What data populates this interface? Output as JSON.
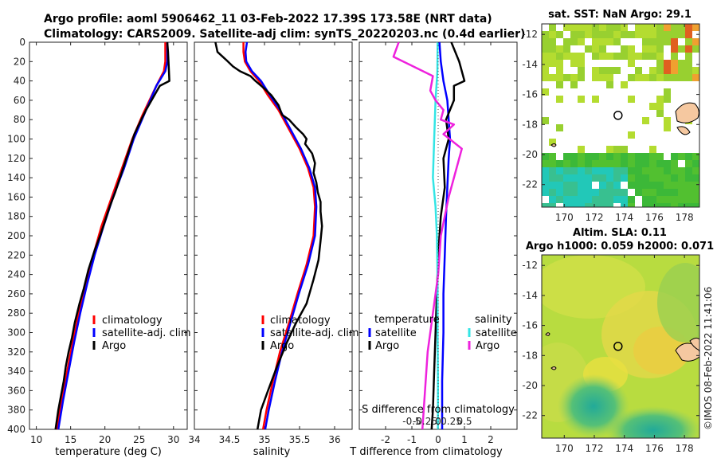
{
  "title": {
    "line1": "Argo profile: aoml 5906462_11 03-Feb-2022 17.39S 173.58E (NRT data)",
    "line2": "Climatology: CARS2009. Satellite-adj clim: synTS_20220203.nc (0.4d earlier)"
  },
  "colors": {
    "clim": "#ff0000",
    "sat": "#0000ff",
    "argo": "#000000",
    "sal_sat": "#33e5e5",
    "sal_argo": "#ee22dd"
  },
  "depth_ticks": [
    "0",
    "20",
    "40",
    "60",
    "80",
    "100",
    "120",
    "140",
    "160",
    "180",
    "200",
    "220",
    "240",
    "260",
    "280",
    "300",
    "320",
    "340",
    "360",
    "380",
    "400"
  ],
  "chart_data": [
    {
      "type": "line",
      "name": "temperature",
      "xlabel": "temperature (deg C)",
      "xlim": [
        9,
        32
      ],
      "xticks": [
        "10",
        "15",
        "20",
        "25",
        "30"
      ],
      "ylim": [
        0,
        400
      ],
      "legend": [
        "climatology",
        "satellite-adj. clim",
        "Argo"
      ],
      "series": [
        {
          "name": "climatology",
          "points": [
            [
              28.8,
              0
            ],
            [
              28.8,
              20
            ],
            [
              28.6,
              30
            ],
            [
              27.5,
              45
            ],
            [
              25.5,
              75
            ],
            [
              24,
              100
            ],
            [
              22.5,
              130
            ],
            [
              21,
              160
            ],
            [
              19.5,
              190
            ],
            [
              18.3,
              220
            ],
            [
              17.2,
              250
            ],
            [
              16.2,
              280
            ],
            [
              15.3,
              310
            ],
            [
              14.5,
              340
            ],
            [
              13.7,
              370
            ],
            [
              13,
              400
            ]
          ]
        },
        {
          "name": "satellite-adj. clim",
          "points": [
            [
              29.1,
              0
            ],
            [
              29.1,
              20
            ],
            [
              28.8,
              30
            ],
            [
              27.5,
              45
            ],
            [
              25.7,
              75
            ],
            [
              24.2,
              100
            ],
            [
              22.8,
              130
            ],
            [
              21.2,
              160
            ],
            [
              19.8,
              190
            ],
            [
              18.5,
              220
            ],
            [
              17.4,
              250
            ],
            [
              16.4,
              280
            ],
            [
              15.5,
              310
            ],
            [
              14.7,
              340
            ],
            [
              13.9,
              370
            ],
            [
              13.2,
              400
            ]
          ]
        },
        {
          "name": "Argo",
          "points": [
            [
              29.1,
              0
            ],
            [
              29.2,
              10
            ],
            [
              29.3,
              25
            ],
            [
              29.4,
              40
            ],
            [
              28,
              45
            ],
            [
              26,
              70
            ],
            [
              25.3,
              80
            ],
            [
              24.3,
              95
            ],
            [
              23.6,
              110
            ],
            [
              22.9,
              125
            ],
            [
              22.2,
              140
            ],
            [
              21.5,
              155
            ],
            [
              20.7,
              170
            ],
            [
              20,
              185
            ],
            [
              19.3,
              200
            ],
            [
              18.5,
              215
            ],
            [
              17.6,
              235
            ],
            [
              16.9,
              255
            ],
            [
              16.3,
              270
            ],
            [
              15.6,
              290
            ],
            [
              15.2,
              305
            ],
            [
              14.7,
              320
            ],
            [
              14.3,
              335
            ],
            [
              14,
              350
            ],
            [
              13.6,
              365
            ],
            [
              13.2,
              380
            ],
            [
              12.8,
              400
            ]
          ]
        }
      ]
    },
    {
      "type": "line",
      "name": "salinity",
      "xlabel": "salinity",
      "xlim": [
        34,
        36.25
      ],
      "xticks": [
        "34",
        "34.5",
        "35",
        "35.5",
        "36"
      ],
      "ylim": [
        0,
        400
      ],
      "legend": [
        "climatology",
        "satellite-adj. clim",
        "Argo"
      ],
      "series": [
        {
          "name": "climatology",
          "points": [
            [
              34.7,
              0
            ],
            [
              34.7,
              10
            ],
            [
              34.72,
              20
            ],
            [
              34.8,
              30
            ],
            [
              34.92,
              40
            ],
            [
              35.05,
              55
            ],
            [
              35.2,
              70
            ],
            [
              35.35,
              90
            ],
            [
              35.5,
              110
            ],
            [
              35.62,
              130
            ],
            [
              35.7,
              150
            ],
            [
              35.72,
              170
            ],
            [
              35.7,
              200
            ],
            [
              35.6,
              230
            ],
            [
              35.47,
              260
            ],
            [
              35.35,
              290
            ],
            [
              35.22,
              320
            ],
            [
              35.12,
              350
            ],
            [
              35.03,
              380
            ],
            [
              34.98,
              400
            ]
          ]
        },
        {
          "name": "satellite-adj. clim",
          "points": [
            [
              34.75,
              0
            ],
            [
              34.73,
              10
            ],
            [
              34.74,
              20
            ],
            [
              34.82,
              30
            ],
            [
              34.95,
              40
            ],
            [
              35.08,
              55
            ],
            [
              35.22,
              70
            ],
            [
              35.37,
              90
            ],
            [
              35.52,
              110
            ],
            [
              35.64,
              130
            ],
            [
              35.72,
              150
            ],
            [
              35.74,
              170
            ],
            [
              35.72,
              200
            ],
            [
              35.62,
              230
            ],
            [
              35.49,
              260
            ],
            [
              35.37,
              290
            ],
            [
              35.25,
              320
            ],
            [
              35.15,
              350
            ],
            [
              35.06,
              380
            ],
            [
              35.01,
              400
            ]
          ]
        },
        {
          "name": "Argo",
          "points": [
            [
              34.3,
              0
            ],
            [
              34.33,
              10
            ],
            [
              34.45,
              18
            ],
            [
              34.55,
              25
            ],
            [
              34.65,
              30
            ],
            [
              34.8,
              35
            ],
            [
              34.87,
              40
            ],
            [
              35.0,
              48
            ],
            [
              35.1,
              55
            ],
            [
              35.2,
              65
            ],
            [
              35.25,
              75
            ],
            [
              35.35,
              80
            ],
            [
              35.45,
              88
            ],
            [
              35.55,
              95
            ],
            [
              35.6,
              100
            ],
            [
              35.58,
              105
            ],
            [
              35.68,
              115
            ],
            [
              35.72,
              125
            ],
            [
              35.7,
              135
            ],
            [
              35.74,
              145
            ],
            [
              35.76,
              155
            ],
            [
              35.8,
              165
            ],
            [
              35.8,
              175
            ],
            [
              35.82,
              190
            ],
            [
              35.8,
              205
            ],
            [
              35.77,
              225
            ],
            [
              35.7,
              245
            ],
            [
              35.6,
              270
            ],
            [
              35.45,
              290
            ],
            [
              35.32,
              310
            ],
            [
              35.18,
              335
            ],
            [
              35.05,
              360
            ],
            [
              34.95,
              380
            ],
            [
              34.9,
              400
            ]
          ]
        }
      ]
    },
    {
      "type": "line",
      "name": "difference",
      "xlabel": "T difference from climatology",
      "xlabel_top": "S difference from climatology",
      "xlim": [
        -3,
        3
      ],
      "xticks": [
        "-2",
        "-1",
        "0",
        "1",
        "2"
      ],
      "xticks_top": [
        "-0.5",
        "-0.25",
        "0",
        "0.25",
        "0.5"
      ],
      "ylim": [
        0,
        400
      ],
      "legend_t": {
        "title": "temperature",
        "items": [
          "satellite",
          "Argo"
        ]
      },
      "legend_s": {
        "title": "salinity",
        "items": [
          "satellite",
          "Argo"
        ]
      },
      "series": [
        {
          "name": "T satellite",
          "points": [
            [
              0.05,
              0
            ],
            [
              0.1,
              20
            ],
            [
              0.2,
              40
            ],
            [
              0.35,
              60
            ],
            [
              0.4,
              80
            ],
            [
              0.45,
              100
            ],
            [
              0.4,
              120
            ],
            [
              0.35,
              150
            ],
            [
              0.3,
              180
            ],
            [
              0.25,
              220
            ],
            [
              0.2,
              260
            ],
            [
              0.2,
              300
            ],
            [
              0.15,
              350
            ],
            [
              0.15,
              400
            ]
          ]
        },
        {
          "name": "T Argo",
          "points": [
            [
              0.5,
              0
            ],
            [
              0.8,
              20
            ],
            [
              1.0,
              40
            ],
            [
              0.6,
              45
            ],
            [
              0.6,
              60
            ],
            [
              0.3,
              80
            ],
            [
              0.4,
              100
            ],
            [
              0.2,
              120
            ],
            [
              0.25,
              150
            ],
            [
              0.1,
              180
            ],
            [
              0.0,
              220
            ],
            [
              -0.05,
              260
            ],
            [
              -0.1,
              300
            ],
            [
              -0.15,
              340
            ],
            [
              -0.2,
              380
            ],
            [
              -0.25,
              400
            ]
          ]
        },
        {
          "name": "S satellite",
          "points": [
            [
              -0.02,
              0
            ],
            [
              -0.03,
              30
            ],
            [
              -0.1,
              60
            ],
            [
              -0.15,
              100
            ],
            [
              -0.2,
              140
            ],
            [
              -0.1,
              170
            ],
            [
              -0.05,
              200
            ],
            [
              -0.02,
              250
            ],
            [
              -0.02,
              300
            ],
            [
              -0.01,
              350
            ],
            [
              -0.01,
              400
            ]
          ]
        },
        {
          "name": "S Argo",
          "points": [
            [
              -1.5,
              0
            ],
            [
              -1.7,
              15
            ],
            [
              -0.2,
              35
            ],
            [
              -0.3,
              50
            ],
            [
              -0.1,
              60
            ],
            [
              0.2,
              70
            ],
            [
              0.1,
              80
            ],
            [
              0.6,
              85
            ],
            [
              0.2,
              95
            ],
            [
              0.9,
              110
            ],
            [
              0.7,
              130
            ],
            [
              0.4,
              160
            ],
            [
              0.1,
              200
            ],
            [
              0.0,
              240
            ],
            [
              -0.2,
              280
            ],
            [
              -0.4,
              320
            ],
            [
              -0.5,
              360
            ],
            [
              -0.6,
              400
            ]
          ]
        }
      ]
    },
    {
      "type": "heatmap",
      "name": "sst_map",
      "title": "sat. SST: NaN Argo: 29.1",
      "yticks": [
        "-12",
        "-14",
        "-16",
        "-18",
        "-20",
        "-22"
      ],
      "xticks": [
        "170",
        "172",
        "174",
        "176",
        "178"
      ],
      "argo_position": [
        173.58,
        -17.39
      ]
    },
    {
      "type": "heatmap",
      "name": "sla_map",
      "title1": "Altim. SLA: 0.11",
      "title2": "Argo h1000: 0.059 h2000: 0.071",
      "yticks": [
        "-12",
        "-14",
        "-16",
        "-18",
        "-20",
        "-22"
      ],
      "xticks": [
        "170",
        "172",
        "174",
        "176",
        "178"
      ],
      "argo_position": [
        173.58,
        -17.39
      ]
    }
  ],
  "credit": "©IMOS 08-Feb-2022 11:41:06"
}
